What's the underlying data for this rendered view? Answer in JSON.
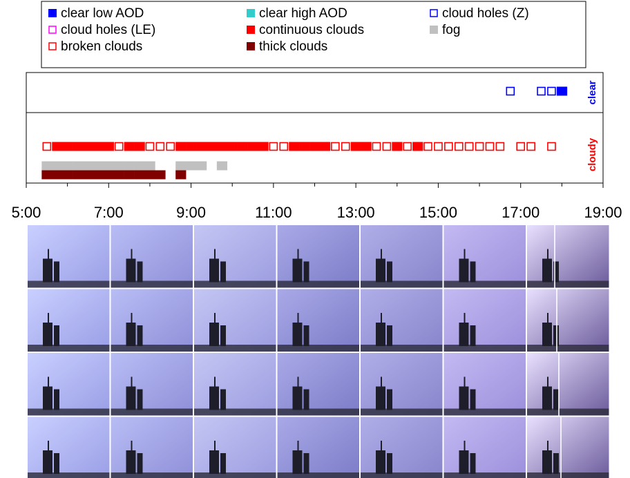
{
  "chart_data": {
    "type": "timeline",
    "xlim": [
      5,
      19
    ],
    "xticks": [
      {
        "value": 5,
        "label": "5:00"
      },
      {
        "value": 7,
        "label": "7:00"
      },
      {
        "value": 9,
        "label": "9:00"
      },
      {
        "value": 11,
        "label": "11:00"
      },
      {
        "value": 13,
        "label": "13:00"
      },
      {
        "value": 15,
        "label": "15:00"
      },
      {
        "value": 17,
        "label": "17:00"
      },
      {
        "value": 19,
        "label": "19:00"
      }
    ],
    "xminorticks": [
      6,
      8,
      10,
      12,
      14,
      16,
      18
    ],
    "slot": 0.25,
    "row_labels": [
      {
        "text": "clear",
        "color": "#0000ff"
      },
      {
        "text": "cloudy",
        "color": "#ff0000"
      }
    ],
    "series": [
      {
        "name": "clear low AOD",
        "color": "#0000ff",
        "marker": "filled",
        "values": [
          18.0
        ]
      },
      {
        "name": "clear high AOD",
        "color": "#33cccc",
        "marker": "filled",
        "values": []
      },
      {
        "name": "cloud holes (Z)",
        "color": "#0000ff",
        "marker": "hollow",
        "values": [
          16.75,
          17.5,
          17.75
        ]
      },
      {
        "name": "cloud holes (LE)",
        "color": "#ff00ff",
        "marker": "hollow",
        "values": []
      },
      {
        "name": "continuous clouds",
        "color": "#ff0000",
        "marker": "filled",
        "values": [
          5.75,
          6.0,
          6.25,
          6.5,
          6.75,
          7.0,
          7.5,
          7.75,
          8.75,
          9.0,
          9.25,
          9.5,
          9.75,
          10.0,
          10.25,
          10.5,
          10.75,
          11.5,
          11.75,
          12.0,
          12.25,
          13.0,
          13.25,
          14.0,
          14.5
        ]
      },
      {
        "name": "fog",
        "color": "#c0c0c0",
        "marker": "filled",
        "values": [
          5.5,
          5.75,
          6.0,
          6.25,
          6.5,
          6.75,
          7.0,
          7.25,
          7.5,
          7.75,
          8.0,
          8.75,
          9.0,
          9.25,
          9.75
        ]
      },
      {
        "name": "broken clouds",
        "color": "#ff0000",
        "marker": "hollow",
        "values": [
          5.5,
          7.25,
          8.0,
          8.25,
          8.5,
          11.0,
          11.25,
          12.5,
          12.75,
          13.5,
          13.75,
          14.25,
          14.75,
          15.0,
          15.25,
          15.5,
          15.75,
          16.0,
          16.25,
          16.5,
          17.0,
          17.25,
          17.75
        ]
      },
      {
        "name": "thick clouds",
        "color": "#800000",
        "marker": "filled",
        "values": [
          5.5,
          5.75,
          6.0,
          6.25,
          6.5,
          6.75,
          7.0,
          7.25,
          7.5,
          7.75,
          8.0,
          8.25,
          8.75
        ]
      }
    ]
  }
}
